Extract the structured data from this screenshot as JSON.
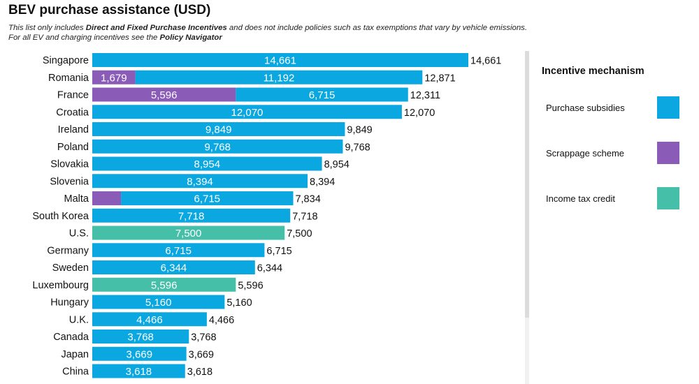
{
  "header": {
    "title": "BEV purchase assistance (USD)",
    "subtitle_parts": [
      {
        "text": "This list only includes ",
        "bold": false
      },
      {
        "text": "Direct and Fixed Purchase Incentives",
        "bold": true
      },
      {
        "text": " and does not include policies such as tax exemptions that vary by vehicle emissions.  For all EV and charging incentives see the ",
        "bold": false
      },
      {
        "text": "Policy Navigator",
        "bold": true
      }
    ]
  },
  "colors": {
    "purchase_subsidies": "#0AA7E0",
    "scrappage_scheme": "#8A5BB7",
    "income_tax_credit": "#46BFA9"
  },
  "legend": {
    "title": "Incentive mechanism",
    "items": [
      {
        "key": "purchase_subsidies",
        "label": "Purchase subsidies"
      },
      {
        "key": "scrappage_scheme",
        "label": "Scrappage scheme"
      },
      {
        "key": "income_tax_credit",
        "label": "Income tax credit"
      }
    ]
  },
  "chart_data": {
    "type": "bar",
    "orientation": "horizontal",
    "stacked": true,
    "title": "BEV purchase assistance (USD)",
    "xlabel": "",
    "ylabel": "",
    "xlim": [
      0,
      14661
    ],
    "grid": false,
    "legend_position": "right",
    "categories": [
      "Singapore",
      "Romania",
      "France",
      "Croatia",
      "Ireland",
      "Poland",
      "Slovakia",
      "Slovenia",
      "Malta",
      "South Korea",
      "U.S.",
      "Germany",
      "Sweden",
      "Luxembourg",
      "Hungary",
      "U.K.",
      "Canada",
      "Japan",
      "China"
    ],
    "series": [
      {
        "name": "Scrappage scheme",
        "key": "scrappage_scheme",
        "values": [
          0,
          1679,
          5596,
          0,
          0,
          0,
          0,
          0,
          1119,
          0,
          0,
          0,
          0,
          0,
          0,
          0,
          0,
          0,
          0
        ],
        "labels": [
          "",
          "1,679",
          "5,596",
          "",
          "",
          "",
          "",
          "",
          "",
          "",
          "",
          "",
          "",
          "",
          "",
          "",
          "",
          "",
          ""
        ]
      },
      {
        "name": "Purchase subsidies",
        "key": "purchase_subsidies",
        "values": [
          14661,
          11192,
          6715,
          12070,
          9849,
          9768,
          8954,
          8394,
          6715,
          7718,
          0,
          6715,
          6344,
          0,
          5160,
          4466,
          3768,
          3669,
          3618
        ],
        "labels": [
          "14,661",
          "11,192",
          "6,715",
          "12,070",
          "9,849",
          "9,768",
          "8,954",
          "8,394",
          "6,715",
          "7,718",
          "",
          "6,715",
          "6,344",
          "",
          "5,160",
          "4,466",
          "3,768",
          "3,669",
          "3,618"
        ]
      },
      {
        "name": "Income tax credit",
        "key": "income_tax_credit",
        "values": [
          0,
          0,
          0,
          0,
          0,
          0,
          0,
          0,
          0,
          0,
          7500,
          0,
          0,
          5596,
          0,
          0,
          0,
          0,
          0
        ],
        "labels": [
          "",
          "",
          "",
          "",
          "",
          "",
          "",
          "",
          "",
          "",
          "7,500",
          "",
          "",
          "5,596",
          "",
          "",
          "",
          "",
          ""
        ]
      }
    ],
    "totals": [
      14661,
      12871,
      12311,
      12070,
      9849,
      9768,
      8954,
      8394,
      7834,
      7718,
      7500,
      6715,
      6344,
      5596,
      5160,
      4466,
      3768,
      3669,
      3618
    ],
    "total_labels": [
      "14,661",
      "12,871",
      "12,311",
      "12,070",
      "9,849",
      "9,768",
      "8,954",
      "8,394",
      "7,834",
      "7,718",
      "7,500",
      "6,715",
      "6,344",
      "5,596",
      "5,160",
      "4,466",
      "3,768",
      "3,669",
      "3,618"
    ]
  }
}
